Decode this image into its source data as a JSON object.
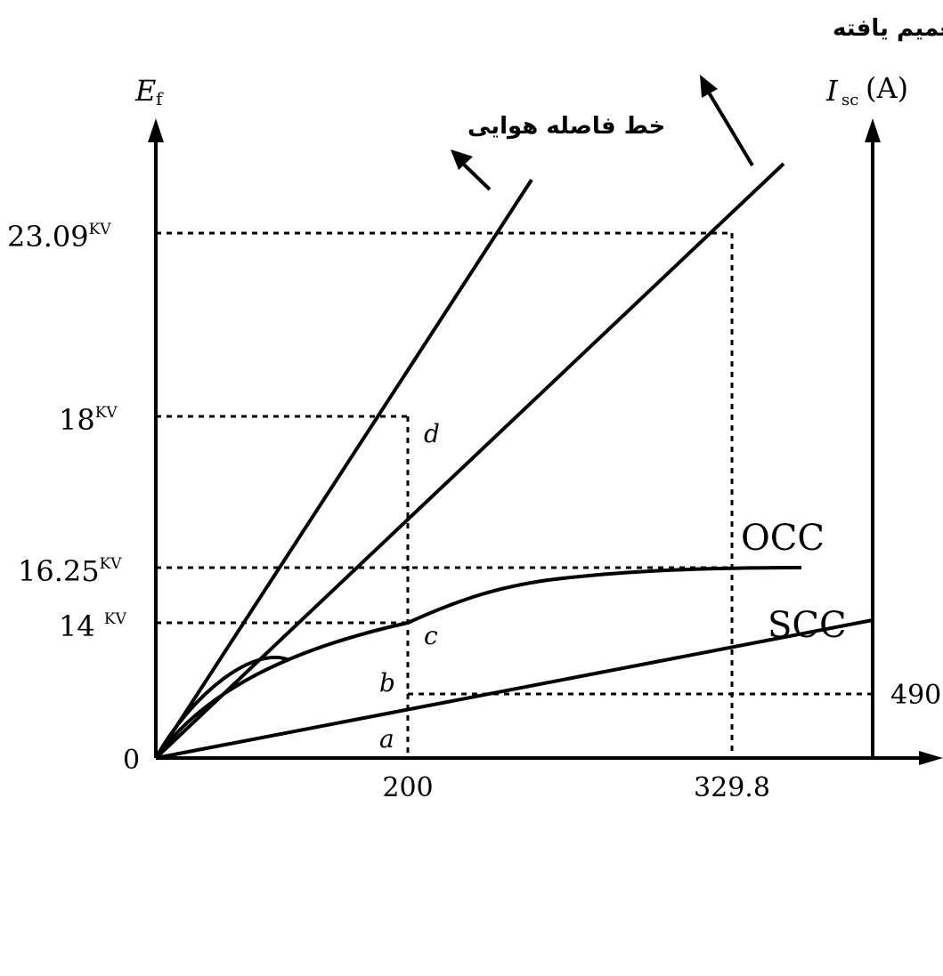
{
  "axes": {
    "y_left_label": "E",
    "y_left_label_sub": "f",
    "y_right_label_main": "I",
    "y_right_label_sub": "sc",
    "y_right_label_unit": "(A)",
    "origin_label": "0",
    "x_tick_200": "200",
    "x_tick_329": "329.8",
    "right_tick_490": "490"
  },
  "y_ticks": {
    "v23": {
      "value": "23.09",
      "unit": "KV"
    },
    "v18": {
      "value": "18",
      "unit": "KV"
    },
    "v1625": {
      "value": "16.25",
      "unit": "KV"
    },
    "v14": {
      "value": "14 ",
      "unit": "KV"
    }
  },
  "points": {
    "a": "a",
    "b": "b",
    "c": "c",
    "d": "d"
  },
  "curves": {
    "occ": "OCC",
    "scc": "SCC",
    "air_gap_line": "خط فاصله هوایی",
    "generalized_air_gap_line": "خط فاصله هوایی تعمیم یافته"
  }
}
